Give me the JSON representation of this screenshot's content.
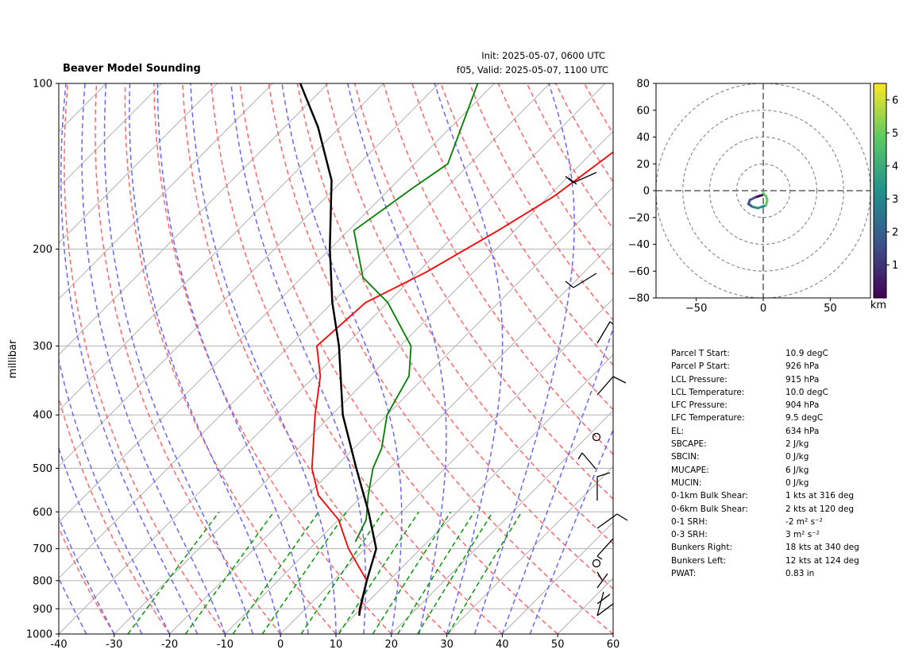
{
  "header": {
    "title": "Beaver Model Sounding",
    "init": "Init: 2025-05-07, 0600 UTC",
    "valid": "f05, Valid: 2025-05-07, 1100 UTC"
  },
  "params": [
    {
      "label": "Parcel T Start:",
      "value": "10.9 degC"
    },
    {
      "label": "Parcel P Start:",
      "value": "926 hPa"
    },
    {
      "label": "LCL Pressure:",
      "value": "915 hPa"
    },
    {
      "label": "LCL Temperature:",
      "value": "10.0 degC"
    },
    {
      "label": "LFC Pressure:",
      "value": "904 hPa"
    },
    {
      "label": "LFC Temperature:",
      "value": "9.5 degC"
    },
    {
      "label": "EL:",
      "value": "634 hPa"
    },
    {
      "label": "SBCAPE:",
      "value": "2 J/kg"
    },
    {
      "label": "SBCIN:",
      "value": "0 J/kg"
    },
    {
      "label": "MUCAPE:",
      "value": "6 J/kg"
    },
    {
      "label": "MUCIN:",
      "value": "0 J/kg"
    },
    {
      "label": "0-1km Bulk Shear:",
      "value": "1 kts at 316 deg"
    },
    {
      "label": "0-6km Bulk Shear:",
      "value": "2 kts at 120 deg"
    },
    {
      "label": "0-1 SRH:",
      "value": "-2 m² s⁻²"
    },
    {
      "label": "0-3 SRH:",
      "value": "3 m² s⁻²"
    },
    {
      "label": "Bunkers Right:",
      "value": "18 kts at 340 deg"
    },
    {
      "label": "Bunkers Left:",
      "value": "12 kts at 124 deg"
    },
    {
      "label": "PWAT:",
      "value": "0.83 in"
    }
  ],
  "chart_data": [
    {
      "type": "line",
      "subtype": "skew-T log-P",
      "ylabel": "millibar",
      "xlabel": "",
      "xlim": [
        -40,
        60
      ],
      "ylim": [
        1000,
        100
      ],
      "xticks": [
        -40,
        -30,
        -20,
        -10,
        0,
        10,
        20,
        30,
        40,
        50,
        60
      ],
      "yticks": [
        100,
        200,
        300,
        400,
        500,
        600,
        700,
        800,
        900,
        1000
      ],
      "grid": true,
      "colors": {
        "temperature": "#ff0000",
        "dewpoint": "#008000",
        "parcel": "#000000",
        "dry_adiabat": "#ff6666",
        "moist_adiabat": "#6666ff",
        "mixing_ratio": "#009900"
      },
      "series": [
        {
          "role": "temperature",
          "p": [
            100,
            160,
            185,
            220,
            250,
            300,
            340,
            400,
            500,
            560,
            620,
            700,
            800,
            926
          ],
          "values": [
            -22,
            -29,
            -33,
            -38.5,
            -44,
            -45,
            -39,
            -33,
            -24,
            -18,
            -10,
            -3,
            6,
            10.9
          ]
        },
        {
          "role": "dewpoint",
          "p": [
            100,
            140,
            155,
            185,
            225,
            250,
            300,
            340,
            400,
            460,
            500,
            560,
            620,
            680
          ],
          "values": [
            -63,
            -54,
            -56,
            -59,
            -49,
            -40,
            -28,
            -23,
            -20,
            -15,
            -13,
            -9,
            -5,
            -3
          ]
        },
        {
          "role": "parcel",
          "p": [
            100,
            120,
            150,
            200,
            250,
            300,
            400,
            500,
            600,
            700,
            800,
            900,
            926
          ],
          "values": [
            -95,
            -84,
            -72,
            -60,
            -50,
            -41,
            -28,
            -16,
            -6,
            2,
            6,
            9.8,
            10.9
          ]
        }
      ]
    },
    {
      "type": "line",
      "subtype": "hodograph",
      "xlim": [
        -80,
        80
      ],
      "ylim": [
        -80,
        80
      ],
      "xticks": [
        -50,
        0,
        50
      ],
      "yticks": [
        -80,
        -60,
        -40,
        -20,
        0,
        20,
        40,
        60,
        80
      ],
      "rings": [
        20,
        40,
        60,
        80
      ],
      "colorbar": {
        "label": "km",
        "ticks": [
          1,
          2,
          3,
          4,
          5,
          6
        ]
      },
      "u": [
        0,
        -3,
        -6,
        -10,
        -11,
        -8,
        -4,
        2,
        3,
        2,
        0
      ],
      "v": [
        -3,
        -4,
        -5,
        -7,
        -10,
        -12,
        -13,
        -11,
        -7,
        -4,
        -2
      ],
      "height_km": [
        0.1,
        0.6,
        1.2,
        1.8,
        2.4,
        3.0,
        3.6,
        4.2,
        4.8,
        5.4,
        6.2
      ]
    }
  ]
}
